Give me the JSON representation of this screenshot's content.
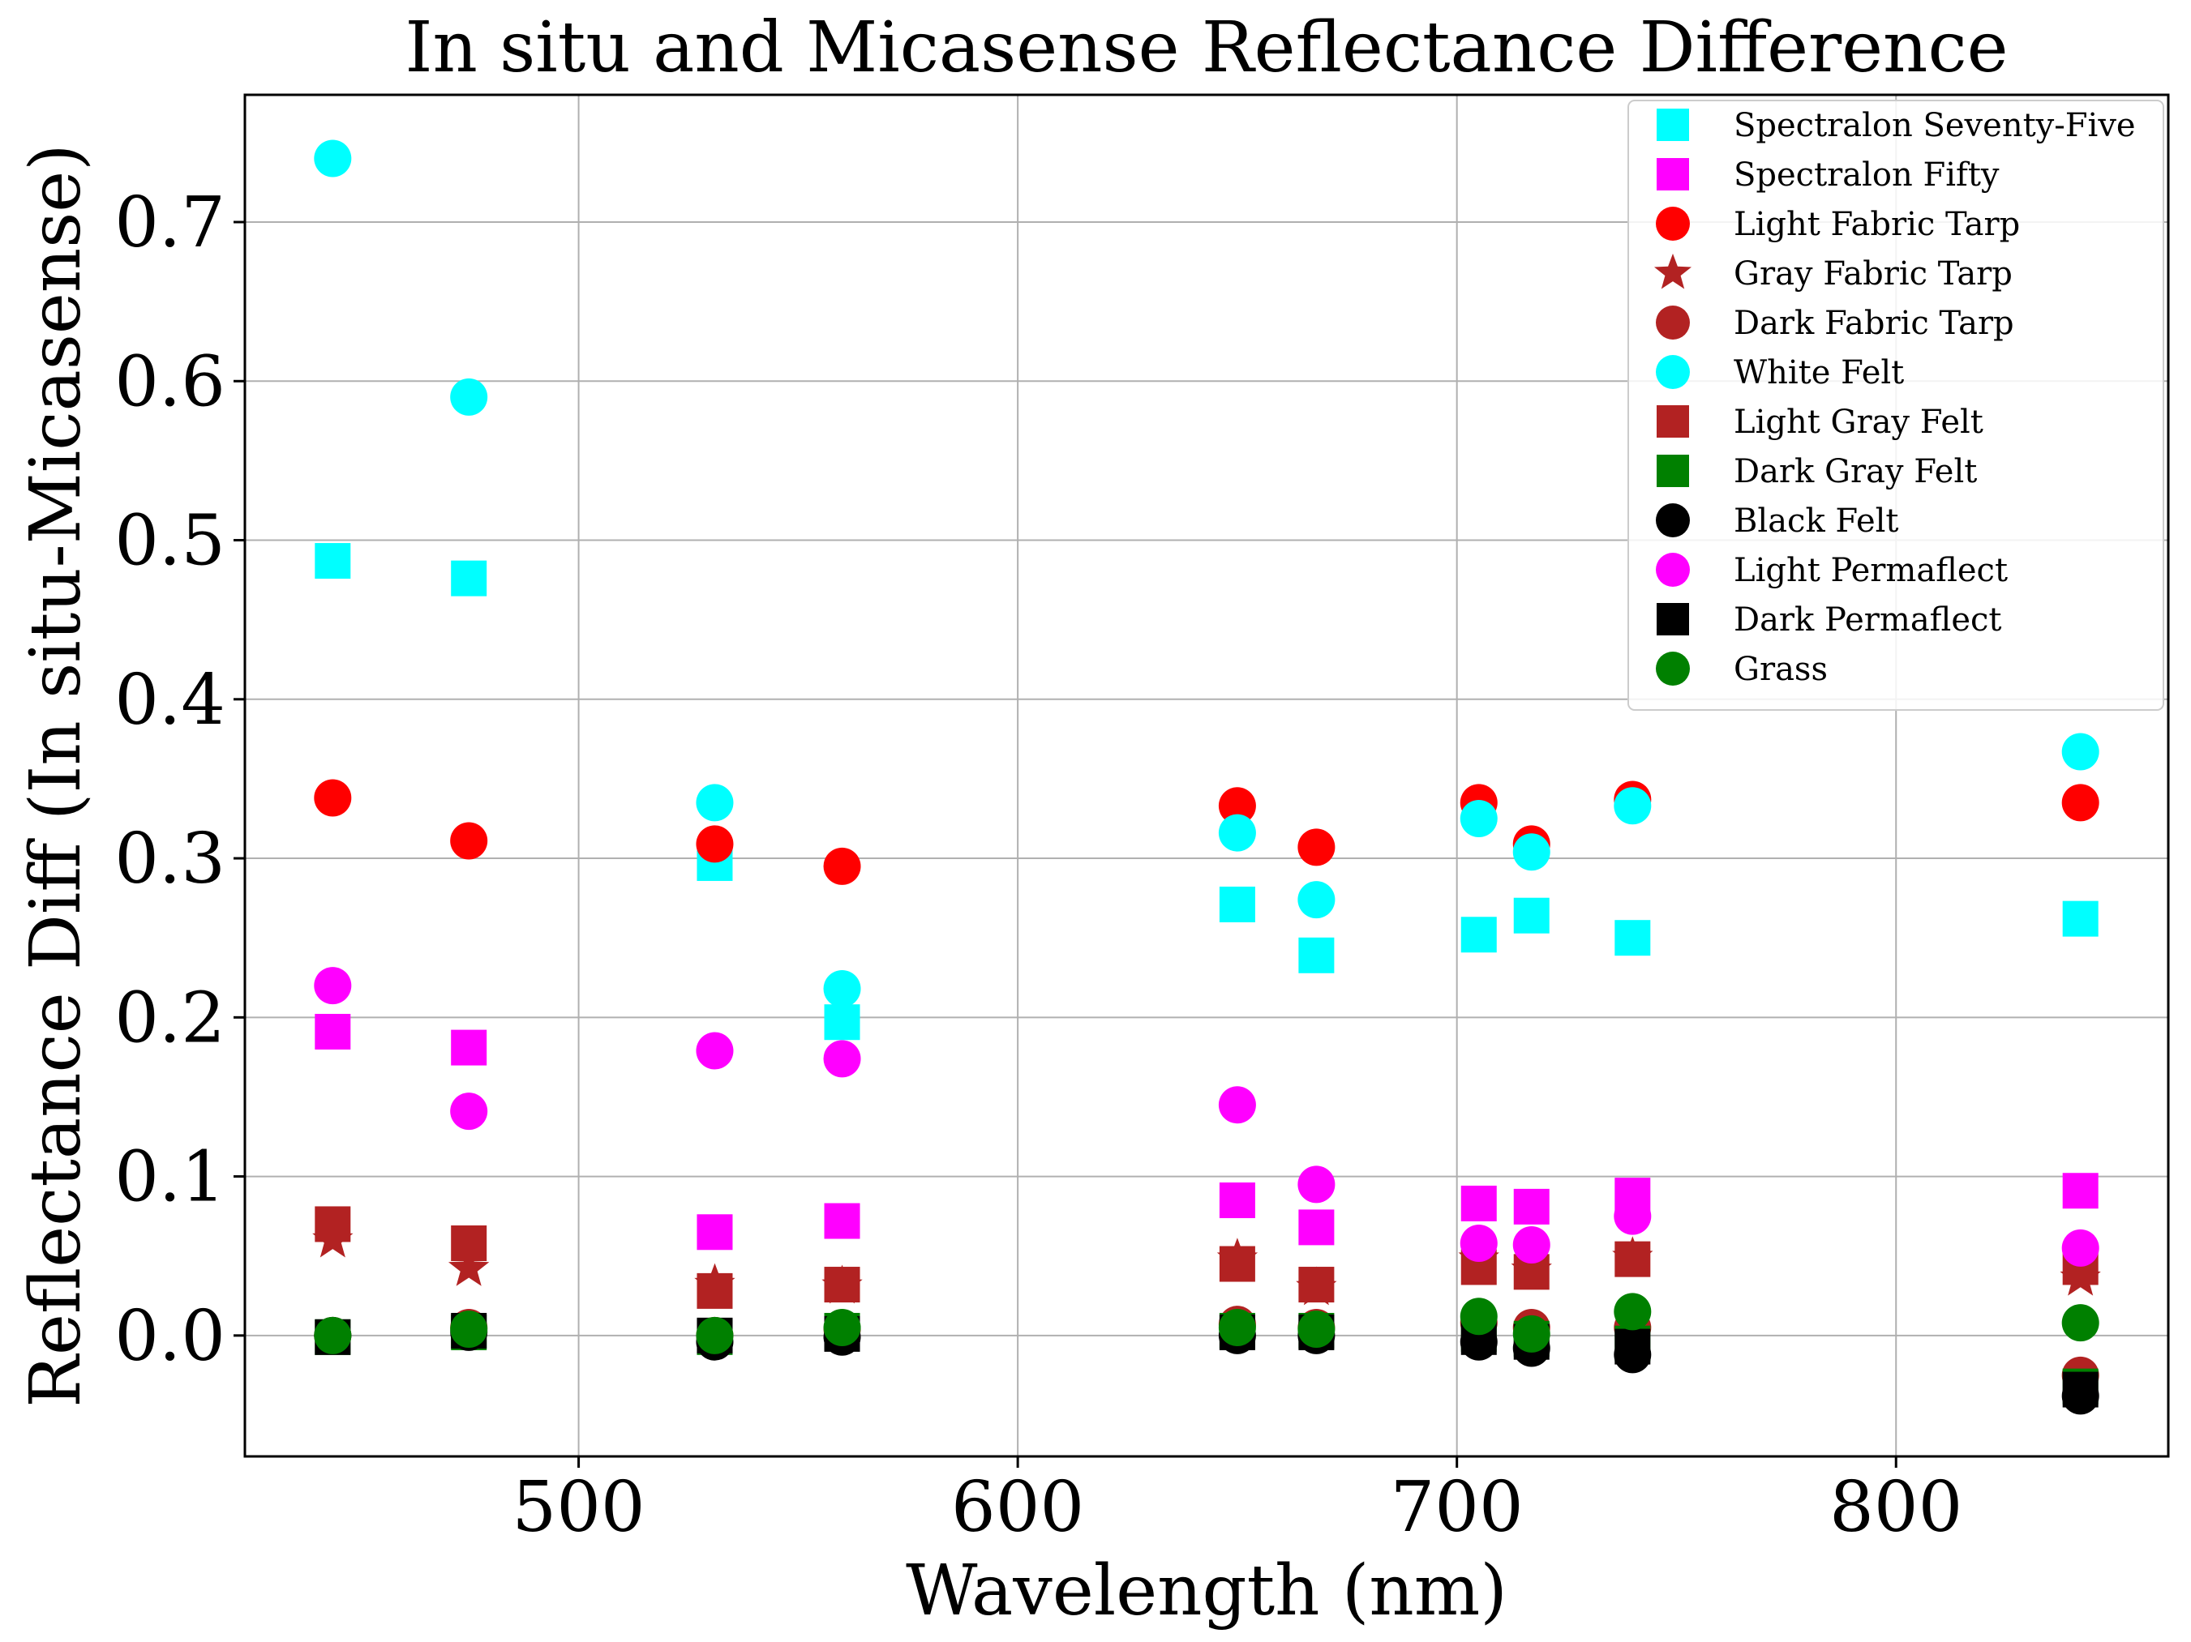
{
  "chart_data": {
    "type": "scatter",
    "title": "In situ and Micasense Reflectance Difference",
    "xlabel": "Wavelength (nm)",
    "ylabel": "Reflectance Diff (In situ-Micasense)",
    "xlim": [
      424,
      862
    ],
    "ylim": [
      -0.076,
      0.78
    ],
    "xticks": [
      500,
      600,
      700,
      800
    ],
    "yticks": [
      0.0,
      0.1,
      0.2,
      0.3,
      0.4,
      0.5,
      0.6,
      0.7
    ],
    "ytick_labels": [
      "0.0",
      "0.1",
      "0.2",
      "0.3",
      "0.4",
      "0.5",
      "0.6",
      "0.7"
    ],
    "xtick_labels": [
      "500",
      "600",
      "700",
      "800"
    ],
    "grid": true,
    "legend_position": "top-right",
    "x": [
      444,
      475,
      531,
      560,
      650,
      668,
      705,
      717,
      740,
      842
    ],
    "series": [
      {
        "name": "Spectralon Seventy-Five",
        "marker": "square",
        "color": "#00ffff",
        "values": [
          0.487,
          0.476,
          0.297,
          0.197,
          0.271,
          0.239,
          0.252,
          0.264,
          0.25,
          0.262
        ]
      },
      {
        "name": "Spectralon Fifty",
        "marker": "square",
        "color": "#ff00ff",
        "values": [
          0.191,
          0.181,
          0.065,
          0.072,
          0.085,
          0.068,
          0.083,
          0.081,
          0.088,
          0.091
        ]
      },
      {
        "name": "Light Fabric Tarp",
        "marker": "circle",
        "color": "#ff0000",
        "values": [
          0.338,
          0.311,
          0.309,
          0.295,
          0.333,
          0.307,
          0.335,
          0.309,
          0.337,
          0.335
        ]
      },
      {
        "name": "Gray Fabric Tarp",
        "marker": "star",
        "color": "#b22222",
        "values": [
          0.06,
          0.042,
          0.032,
          0.031,
          0.048,
          0.03,
          0.048,
          0.041,
          0.049,
          0.036
        ]
      },
      {
        "name": "Dark Fabric Tarp",
        "marker": "circle",
        "color": "#b22222",
        "values": [
          0.0,
          0.005,
          0.0,
          0.004,
          0.007,
          0.005,
          0.008,
          0.005,
          0.005,
          -0.025
        ]
      },
      {
        "name": "White Felt",
        "marker": "circle",
        "color": "#00ffff",
        "values": [
          0.74,
          0.59,
          0.335,
          0.218,
          0.316,
          0.274,
          0.325,
          0.304,
          0.333,
          0.367
        ]
      },
      {
        "name": "Light Gray Felt",
        "marker": "square",
        "color": "#b22222",
        "values": [
          0.07,
          0.058,
          0.028,
          0.032,
          0.045,
          0.032,
          0.043,
          0.04,
          0.048,
          0.043
        ]
      },
      {
        "name": "Dark Gray Felt",
        "marker": "square",
        "color": "#008000",
        "values": [
          -0.001,
          0.002,
          -0.001,
          0.003,
          0.003,
          0.003,
          0.001,
          -0.002,
          -0.005,
          -0.032
        ]
      },
      {
        "name": "Black Felt",
        "marker": "circle",
        "color": "#000000",
        "values": [
          0.0,
          0.002,
          -0.004,
          -0.001,
          0.0,
          0.0,
          -0.004,
          -0.008,
          -0.012,
          -0.038
        ]
      },
      {
        "name": "Light Permaflect",
        "marker": "circle",
        "color": "#ff00ff",
        "values": [
          0.22,
          0.141,
          0.179,
          0.174,
          0.145,
          0.095,
          0.058,
          0.057,
          0.075,
          0.055
        ]
      },
      {
        "name": "Dark Permaflect",
        "marker": "square",
        "color": "#000000",
        "values": [
          -0.001,
          0.003,
          0.0,
          0.001,
          0.002,
          0.002,
          -0.001,
          -0.004,
          -0.007,
          -0.034
        ]
      },
      {
        "name": "Grass",
        "marker": "circle",
        "color": "#008000",
        "values": [
          0.0,
          0.004,
          0.0,
          0.005,
          0.005,
          0.004,
          0.012,
          0.001,
          0.015,
          0.008
        ]
      }
    ]
  }
}
